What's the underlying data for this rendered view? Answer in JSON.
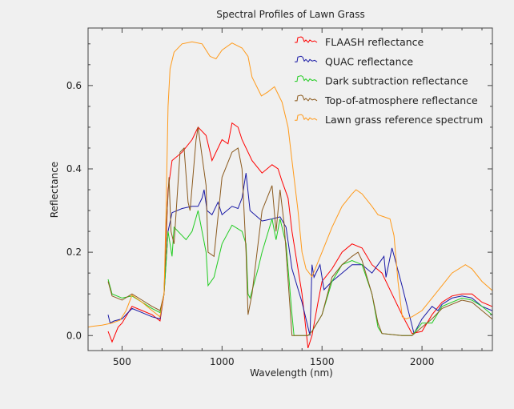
{
  "chart_data": {
    "type": "line",
    "title": "Spectral Profiles of Lawn Grass",
    "xlabel": "Wavelength (nm)",
    "ylabel": "Reflectance",
    "xlim": [
      330,
      2352
    ],
    "ylim": [
      -0.036,
      0.738
    ],
    "xticks": [
      500,
      1000,
      1500,
      2000
    ],
    "xtick_labels": [
      "500",
      "1000",
      "1500",
      "2000"
    ],
    "yticks": [
      0.0,
      0.2,
      0.4,
      0.6
    ],
    "ytick_labels": [
      "0.0",
      "0.2",
      "0.4",
      "0.6"
    ],
    "grid": false,
    "legend_position": "top-right",
    "series": [
      {
        "name": "FLAASH reflectance",
        "color": "#ff0000",
        "points": [
          [
            430,
            0.01
          ],
          [
            450,
            -0.015
          ],
          [
            480,
            0.02
          ],
          [
            500,
            0.03
          ],
          [
            550,
            0.07
          ],
          [
            600,
            0.06
          ],
          [
            650,
            0.05
          ],
          [
            690,
            0.035
          ],
          [
            710,
            0.1
          ],
          [
            730,
            0.35
          ],
          [
            750,
            0.42
          ],
          [
            800,
            0.44
          ],
          [
            850,
            0.47
          ],
          [
            880,
            0.5
          ],
          [
            920,
            0.48
          ],
          [
            950,
            0.42
          ],
          [
            1000,
            0.47
          ],
          [
            1030,
            0.46
          ],
          [
            1050,
            0.51
          ],
          [
            1080,
            0.5
          ],
          [
            1100,
            0.47
          ],
          [
            1150,
            0.42
          ],
          [
            1200,
            0.39
          ],
          [
            1250,
            0.41
          ],
          [
            1280,
            0.4
          ],
          [
            1300,
            0.37
          ],
          [
            1330,
            0.33
          ],
          [
            1350,
            0.25
          ],
          [
            1400,
            0.1
          ],
          [
            1430,
            -0.03
          ],
          [
            1450,
            0.0
          ],
          [
            1480,
            0.08
          ],
          [
            1500,
            0.13
          ],
          [
            1550,
            0.16
          ],
          [
            1600,
            0.2
          ],
          [
            1650,
            0.22
          ],
          [
            1700,
            0.21
          ],
          [
            1750,
            0.17
          ],
          [
            1800,
            0.15
          ],
          [
            1850,
            0.1
          ],
          [
            1900,
            0.05
          ],
          [
            1950,
            0.005
          ],
          [
            2000,
            0.01
          ],
          [
            2050,
            0.05
          ],
          [
            2100,
            0.08
          ],
          [
            2150,
            0.095
          ],
          [
            2200,
            0.1
          ],
          [
            2250,
            0.1
          ],
          [
            2300,
            0.08
          ],
          [
            2350,
            0.07
          ]
        ]
      },
      {
        "name": "QUAC reflectance",
        "color": "#1a1aa6",
        "points": [
          [
            430,
            0.05
          ],
          [
            440,
            0.03
          ],
          [
            460,
            0.035
          ],
          [
            500,
            0.04
          ],
          [
            550,
            0.065
          ],
          [
            600,
            0.055
          ],
          [
            650,
            0.045
          ],
          [
            690,
            0.04
          ],
          [
            710,
            0.1
          ],
          [
            730,
            0.25
          ],
          [
            750,
            0.295
          ],
          [
            800,
            0.305
          ],
          [
            850,
            0.31
          ],
          [
            880,
            0.31
          ],
          [
            900,
            0.33
          ],
          [
            910,
            0.35
          ],
          [
            925,
            0.3
          ],
          [
            950,
            0.29
          ],
          [
            980,
            0.32
          ],
          [
            1000,
            0.29
          ],
          [
            1050,
            0.31
          ],
          [
            1080,
            0.305
          ],
          [
            1100,
            0.33
          ],
          [
            1120,
            0.39
          ],
          [
            1140,
            0.3
          ],
          [
            1200,
            0.275
          ],
          [
            1250,
            0.28
          ],
          [
            1290,
            0.285
          ],
          [
            1320,
            0.26
          ],
          [
            1350,
            0.16
          ],
          [
            1400,
            0.08
          ],
          [
            1440,
            0.0
          ],
          [
            1450,
            0.17
          ],
          [
            1460,
            0.14
          ],
          [
            1490,
            0.17
          ],
          [
            1510,
            0.11
          ],
          [
            1550,
            0.13
          ],
          [
            1600,
            0.15
          ],
          [
            1650,
            0.17
          ],
          [
            1700,
            0.17
          ],
          [
            1750,
            0.15
          ],
          [
            1780,
            0.17
          ],
          [
            1810,
            0.19
          ],
          [
            1820,
            0.14
          ],
          [
            1850,
            0.21
          ],
          [
            1900,
            0.12
          ],
          [
            1960,
            0.005
          ],
          [
            2000,
            0.04
          ],
          [
            2050,
            0.07
          ],
          [
            2080,
            0.06
          ],
          [
            2100,
            0.075
          ],
          [
            2150,
            0.09
          ],
          [
            2200,
            0.095
          ],
          [
            2250,
            0.09
          ],
          [
            2300,
            0.07
          ],
          [
            2350,
            0.06
          ]
        ]
      },
      {
        "name": "Dark subtraction reflectance",
        "color": "#22cc22",
        "points": [
          [
            430,
            0.135
          ],
          [
            450,
            0.1
          ],
          [
            500,
            0.09
          ],
          [
            550,
            0.095
          ],
          [
            600,
            0.08
          ],
          [
            650,
            0.065
          ],
          [
            690,
            0.055
          ],
          [
            710,
            0.1
          ],
          [
            730,
            0.25
          ],
          [
            750,
            0.19
          ],
          [
            760,
            0.26
          ],
          [
            800,
            0.24
          ],
          [
            820,
            0.23
          ],
          [
            850,
            0.25
          ],
          [
            880,
            0.3
          ],
          [
            900,
            0.25
          ],
          [
            920,
            0.2
          ],
          [
            930,
            0.12
          ],
          [
            960,
            0.14
          ],
          [
            1000,
            0.22
          ],
          [
            1050,
            0.265
          ],
          [
            1100,
            0.25
          ],
          [
            1120,
            0.22
          ],
          [
            1130,
            0.1
          ],
          [
            1140,
            0.09
          ],
          [
            1180,
            0.16
          ],
          [
            1200,
            0.2
          ],
          [
            1250,
            0.28
          ],
          [
            1270,
            0.23
          ],
          [
            1290,
            0.28
          ],
          [
            1320,
            0.22
          ],
          [
            1350,
            0.05
          ],
          [
            1360,
            0.0
          ],
          [
            1430,
            0.0
          ],
          [
            1450,
            0.01
          ],
          [
            1500,
            0.05
          ],
          [
            1550,
            0.13
          ],
          [
            1600,
            0.17
          ],
          [
            1650,
            0.18
          ],
          [
            1700,
            0.17
          ],
          [
            1750,
            0.1
          ],
          [
            1780,
            0.02
          ],
          [
            1800,
            0.005
          ],
          [
            1900,
            0.0
          ],
          [
            1950,
            0.0
          ],
          [
            2000,
            0.03
          ],
          [
            2050,
            0.03
          ],
          [
            2100,
            0.07
          ],
          [
            2150,
            0.08
          ],
          [
            2200,
            0.09
          ],
          [
            2250,
            0.085
          ],
          [
            2300,
            0.07
          ],
          [
            2350,
            0.05
          ]
        ]
      },
      {
        "name": "Top-of-atmosphere reflectance",
        "color": "#8b5a1e",
        "points": [
          [
            430,
            0.13
          ],
          [
            450,
            0.095
          ],
          [
            500,
            0.085
          ],
          [
            550,
            0.1
          ],
          [
            600,
            0.085
          ],
          [
            650,
            0.07
          ],
          [
            690,
            0.06
          ],
          [
            710,
            0.1
          ],
          [
            720,
            0.25
          ],
          [
            735,
            0.38
          ],
          [
            745,
            0.25
          ],
          [
            760,
            0.22
          ],
          [
            790,
            0.44
          ],
          [
            810,
            0.45
          ],
          [
            830,
            0.32
          ],
          [
            840,
            0.3
          ],
          [
            870,
            0.47
          ],
          [
            880,
            0.5
          ],
          [
            900,
            0.43
          ],
          [
            920,
            0.36
          ],
          [
            930,
            0.2
          ],
          [
            960,
            0.19
          ],
          [
            1000,
            0.38
          ],
          [
            1050,
            0.44
          ],
          [
            1080,
            0.45
          ],
          [
            1100,
            0.4
          ],
          [
            1120,
            0.2
          ],
          [
            1130,
            0.05
          ],
          [
            1150,
            0.1
          ],
          [
            1200,
            0.3
          ],
          [
            1250,
            0.36
          ],
          [
            1270,
            0.25
          ],
          [
            1290,
            0.35
          ],
          [
            1310,
            0.27
          ],
          [
            1350,
            0.0
          ],
          [
            1430,
            0.0
          ],
          [
            1450,
            0.01
          ],
          [
            1500,
            0.05
          ],
          [
            1550,
            0.14
          ],
          [
            1600,
            0.17
          ],
          [
            1650,
            0.19
          ],
          [
            1680,
            0.2
          ],
          [
            1700,
            0.18
          ],
          [
            1750,
            0.1
          ],
          [
            1780,
            0.03
          ],
          [
            1800,
            0.005
          ],
          [
            1900,
            0.0
          ],
          [
            1950,
            0.0
          ],
          [
            2000,
            0.02
          ],
          [
            2050,
            0.04
          ],
          [
            2100,
            0.065
          ],
          [
            2150,
            0.075
          ],
          [
            2200,
            0.085
          ],
          [
            2250,
            0.08
          ],
          [
            2300,
            0.06
          ],
          [
            2350,
            0.04
          ]
        ]
      },
      {
        "name": "Lawn grass reference spectrum",
        "color": "#ff9a1a",
        "points": [
          [
            330,
            0.02
          ],
          [
            350,
            0.022
          ],
          [
            400,
            0.025
          ],
          [
            450,
            0.03
          ],
          [
            490,
            0.037
          ],
          [
            520,
            0.06
          ],
          [
            550,
            0.097
          ],
          [
            600,
            0.08
          ],
          [
            650,
            0.06
          ],
          [
            690,
            0.045
          ],
          [
            710,
            0.1
          ],
          [
            720,
            0.3
          ],
          [
            730,
            0.55
          ],
          [
            740,
            0.64
          ],
          [
            760,
            0.68
          ],
          [
            800,
            0.7
          ],
          [
            850,
            0.705
          ],
          [
            900,
            0.7
          ],
          [
            940,
            0.67
          ],
          [
            970,
            0.664
          ],
          [
            1000,
            0.685
          ],
          [
            1050,
            0.702
          ],
          [
            1100,
            0.69
          ],
          [
            1130,
            0.67
          ],
          [
            1150,
            0.62
          ],
          [
            1197,
            0.575
          ],
          [
            1230,
            0.585
          ],
          [
            1262,
            0.597
          ],
          [
            1300,
            0.56
          ],
          [
            1330,
            0.5
          ],
          [
            1350,
            0.42
          ],
          [
            1380,
            0.3
          ],
          [
            1400,
            0.2
          ],
          [
            1420,
            0.16
          ],
          [
            1450,
            0.141
          ],
          [
            1500,
            0.2
          ],
          [
            1550,
            0.26
          ],
          [
            1600,
            0.31
          ],
          [
            1650,
            0.34
          ],
          [
            1670,
            0.35
          ],
          [
            1700,
            0.34
          ],
          [
            1750,
            0.31
          ],
          [
            1780,
            0.29
          ],
          [
            1810,
            0.285
          ],
          [
            1840,
            0.28
          ],
          [
            1860,
            0.24
          ],
          [
            1880,
            0.13
          ],
          [
            1901,
            0.045
          ],
          [
            1920,
            0.04
          ],
          [
            1950,
            0.045
          ],
          [
            2000,
            0.06
          ],
          [
            2050,
            0.09
          ],
          [
            2100,
            0.12
          ],
          [
            2150,
            0.15
          ],
          [
            2217,
            0.17
          ],
          [
            2250,
            0.16
          ],
          [
            2300,
            0.13
          ],
          [
            2357,
            0.106
          ]
        ]
      }
    ]
  }
}
